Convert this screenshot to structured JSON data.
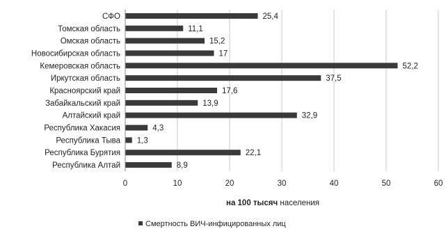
{
  "chart_data": {
    "type": "bar",
    "orientation": "horizontal",
    "categories": [
      "СФО",
      "Томская область",
      "Омская область",
      "Новосибирская область",
      "Кемеровская область",
      "Иркутская область",
      "Красноярский край",
      "Забайкальский край",
      "Алтайский край",
      "Республика Хакасия",
      "Республика Тыва",
      "Республика Бурятия",
      "Республика  Алтай"
    ],
    "series": [
      {
        "name": "Смертность ВИЧ-инфицированных лиц",
        "values": [
          25.4,
          11.1,
          15.2,
          17,
          52.2,
          37.5,
          17.6,
          13.9,
          32.9,
          4.3,
          1.3,
          22.1,
          8.9
        ],
        "value_labels": [
          "25,4",
          "11,1",
          "15,2",
          "17",
          "52,2",
          "37,5",
          "17,6",
          "13,9",
          "32,9",
          "4,3",
          "1,3",
          "22,1",
          "8,9"
        ],
        "color": "#3a3a3a"
      }
    ],
    "xlim": [
      0,
      60
    ],
    "xticks": [
      0,
      10,
      20,
      30,
      40,
      50,
      60
    ],
    "xlabel_bold": "на 100 тысяч",
    "xlabel_rest": " населения",
    "grid": "vertical",
    "legend": "bottom"
  }
}
